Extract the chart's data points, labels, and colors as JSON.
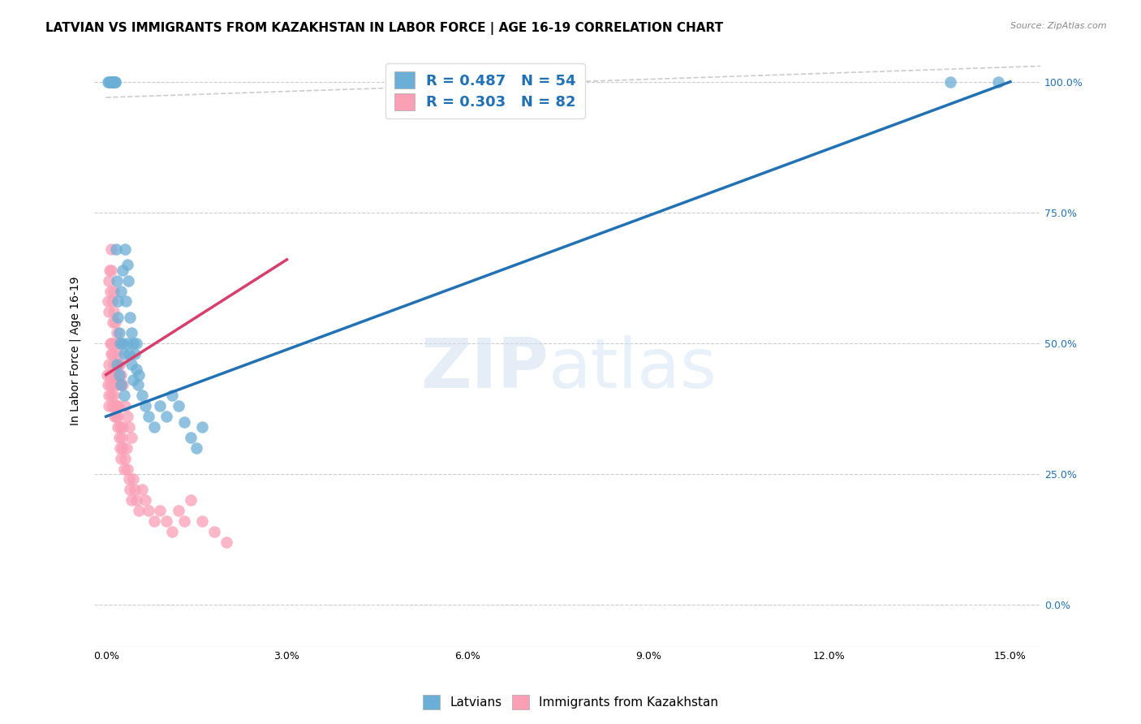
{
  "title": "LATVIAN VS IMMIGRANTS FROM KAZAKHSTAN IN LABOR FORCE | AGE 16-19 CORRELATION CHART",
  "source": "Source: ZipAtlas.com",
  "xlabel_vals": [
    0.0,
    0.03,
    0.06,
    0.09,
    0.12,
    0.15
  ],
  "ylabel_vals": [
    0.0,
    0.25,
    0.5,
    0.75,
    1.0
  ],
  "ylabel_label": "In Labor Force | Age 16-19",
  "xmax": 0.155,
  "ymax": 1.05,
  "ymin": -0.08,
  "xmin": -0.002,
  "legend_latvians": "Latvians",
  "legend_immigrants": "Immigrants from Kazakhstan",
  "R_latvians": 0.487,
  "N_latvians": 54,
  "R_immigrants": 0.303,
  "N_immigrants": 82,
  "latvian_color": "#6baed6",
  "immigrant_color": "#fa9fb5",
  "trend_latvian_color": "#2171b5",
  "trend_immigrant_color": "#d63f6c",
  "diagonal_color": "#cccccc",
  "legend_text_color": "#2171b5",
  "watermark_zip": "ZIP",
  "watermark_atlas": "atlas",
  "title_fontsize": 11,
  "axis_label_fontsize": 10,
  "tick_fontsize": 9,
  "latvian_x": [
    0.0003,
    0.0005,
    0.0007,
    0.0008,
    0.001,
    0.001,
    0.0012,
    0.0013,
    0.0015,
    0.0015,
    0.0017,
    0.0018,
    0.002,
    0.002,
    0.0022,
    0.0023,
    0.0025,
    0.0027,
    0.0028,
    0.003,
    0.0032,
    0.0033,
    0.0035,
    0.0037,
    0.004,
    0.0042,
    0.0045,
    0.0048,
    0.005,
    0.0053,
    0.006,
    0.0065,
    0.007,
    0.008,
    0.009,
    0.01,
    0.011,
    0.012,
    0.013,
    0.014,
    0.015,
    0.016,
    0.0018,
    0.0022,
    0.0025,
    0.003,
    0.0035,
    0.0038,
    0.0042,
    0.0045,
    0.005,
    0.0055,
    0.14,
    0.148
  ],
  "latvian_y": [
    1.0,
    1.0,
    1.0,
    1.0,
    1.0,
    1.0,
    1.0,
    1.0,
    1.0,
    1.0,
    0.68,
    0.62,
    0.58,
    0.55,
    0.52,
    0.5,
    0.6,
    0.64,
    0.5,
    0.48,
    0.68,
    0.58,
    0.65,
    0.62,
    0.55,
    0.52,
    0.5,
    0.48,
    0.45,
    0.42,
    0.4,
    0.38,
    0.36,
    0.34,
    0.38,
    0.36,
    0.4,
    0.38,
    0.35,
    0.32,
    0.3,
    0.34,
    0.46,
    0.44,
    0.42,
    0.4,
    0.5,
    0.48,
    0.46,
    0.43,
    0.5,
    0.44,
    1.0,
    1.0
  ],
  "immigrant_x": [
    0.0002,
    0.0003,
    0.0004,
    0.0005,
    0.0005,
    0.0006,
    0.0007,
    0.0007,
    0.0008,
    0.0008,
    0.0009,
    0.001,
    0.001,
    0.001,
    0.0011,
    0.0011,
    0.0012,
    0.0013,
    0.0014,
    0.0015,
    0.0015,
    0.0016,
    0.0017,
    0.0018,
    0.0018,
    0.0019,
    0.002,
    0.0021,
    0.0022,
    0.0023,
    0.0024,
    0.0025,
    0.0026,
    0.0027,
    0.0028,
    0.003,
    0.0032,
    0.0034,
    0.0036,
    0.0038,
    0.004,
    0.0042,
    0.0045,
    0.0048,
    0.005,
    0.0055,
    0.006,
    0.0065,
    0.007,
    0.008,
    0.009,
    0.01,
    0.011,
    0.012,
    0.013,
    0.014,
    0.016,
    0.018,
    0.02,
    0.0022,
    0.0024,
    0.0003,
    0.0004,
    0.0005,
    0.0006,
    0.0007,
    0.0008,
    0.0009,
    0.001,
    0.0011,
    0.0012,
    0.0013,
    0.0015,
    0.0018,
    0.002,
    0.0022,
    0.0025,
    0.0028,
    0.0032,
    0.0035,
    0.0038,
    0.0042
  ],
  "immigrant_y": [
    0.44,
    0.42,
    0.4,
    0.38,
    0.46,
    0.44,
    0.5,
    0.42,
    0.48,
    0.44,
    0.4,
    0.38,
    0.5,
    0.44,
    0.48,
    0.42,
    0.46,
    0.4,
    0.36,
    0.38,
    0.44,
    0.36,
    0.42,
    0.38,
    0.5,
    0.34,
    0.36,
    0.38,
    0.32,
    0.34,
    0.3,
    0.28,
    0.32,
    0.34,
    0.3,
    0.26,
    0.28,
    0.3,
    0.26,
    0.24,
    0.22,
    0.2,
    0.24,
    0.22,
    0.2,
    0.18,
    0.22,
    0.2,
    0.18,
    0.16,
    0.18,
    0.16,
    0.14,
    0.18,
    0.16,
    0.2,
    0.16,
    0.14,
    0.12,
    0.46,
    0.42,
    0.58,
    0.62,
    0.56,
    0.64,
    0.6,
    0.68,
    0.64,
    0.58,
    0.54,
    0.6,
    0.56,
    0.54,
    0.52,
    0.48,
    0.46,
    0.44,
    0.42,
    0.38,
    0.36,
    0.34,
    0.32
  ],
  "trend_latvian_x0": 0.0,
  "trend_latvian_y0": 0.36,
  "trend_latvian_x1": 0.15,
  "trend_latvian_y1": 1.0,
  "trend_immigrant_x0": 0.0,
  "trend_immigrant_y0": 0.44,
  "trend_immigrant_x1": 0.03,
  "trend_immigrant_y1": 0.66
}
